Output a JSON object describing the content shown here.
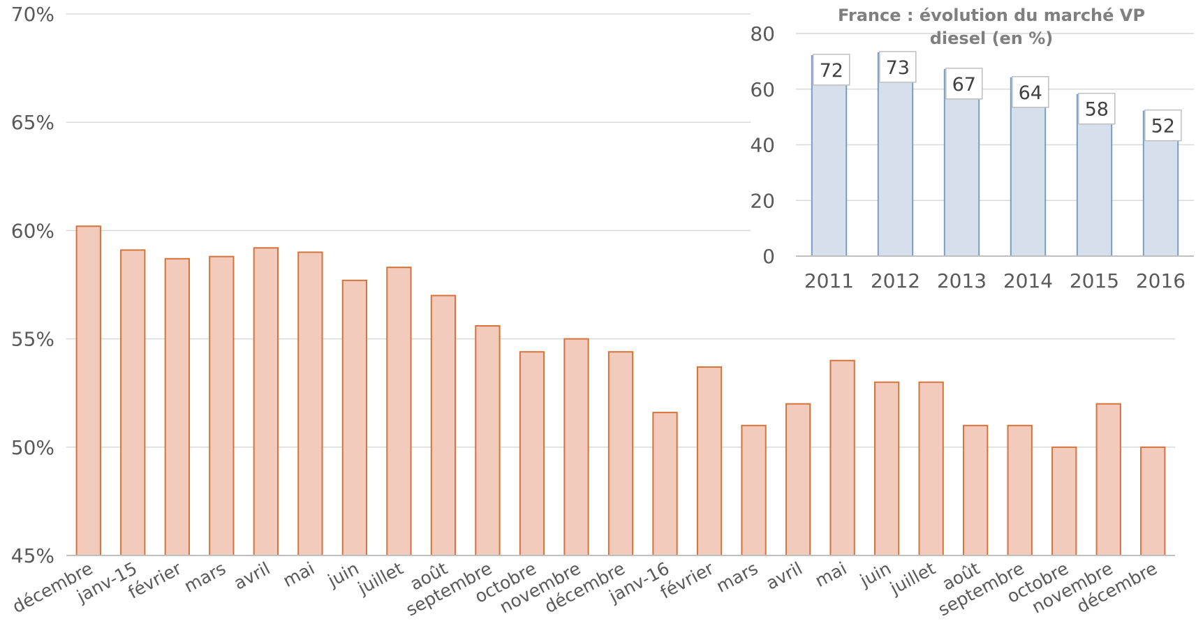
{
  "chart_data": [
    {
      "type": "bar",
      "title": "",
      "xlabel": "",
      "ylabel": "",
      "categories": [
        "décembre",
        "janv-15",
        "février",
        "mars",
        "avril",
        "mai",
        "juin",
        "juillet",
        "août",
        "septembre",
        "octobre",
        "novembre",
        "décembre",
        "janv-16",
        "février",
        "mars",
        "avril",
        "mai",
        "juin",
        "juillet",
        "août",
        "septembre",
        "octobre",
        "novembre",
        "décembre"
      ],
      "values": [
        60.2,
        59.1,
        58.7,
        58.8,
        59.2,
        59.0,
        57.7,
        58.3,
        57.0,
        55.6,
        54.4,
        55.0,
        54.4,
        51.6,
        53.7,
        51.0,
        52.0,
        54.0,
        53.0,
        53.0,
        51.0,
        51.0,
        50.0,
        52.0,
        50.0
      ],
      "ylim": [
        45,
        70
      ],
      "yticks": [
        "45%",
        "50%",
        "55%",
        "60%",
        "65%",
        "70%"
      ],
      "yticks_values": [
        45,
        50,
        55,
        60,
        65,
        70
      ],
      "grid": true,
      "colors": {
        "fill": "#f2cbbd",
        "stroke": "#d4733a",
        "grid": "#d9d9d9",
        "axis": "#bfbfbf"
      }
    },
    {
      "type": "bar",
      "title": "France : évolution du marché VP diesel (en %)",
      "title_lines": [
        "France : évolution du marché VP",
        "diesel (en %)"
      ],
      "xlabel": "",
      "ylabel": "",
      "categories": [
        "2011",
        "2012",
        "2013",
        "2014",
        "2015",
        "2016"
      ],
      "values": [
        72,
        73,
        67,
        64,
        58,
        52
      ],
      "data_labels": [
        "72",
        "73",
        "67",
        "64",
        "58",
        "52"
      ],
      "ylim": [
        0,
        80
      ],
      "yticks": [
        "0",
        "20",
        "40",
        "60",
        "80"
      ],
      "yticks_values": [
        0,
        20,
        40,
        60,
        80
      ],
      "grid": true,
      "colors": {
        "fill": "#d6e0ec",
        "stroke": "#7a9cc2",
        "grid": "#d9d9d9",
        "axis": "#bfbfbf",
        "label_border": "#bfbfbf"
      }
    }
  ]
}
